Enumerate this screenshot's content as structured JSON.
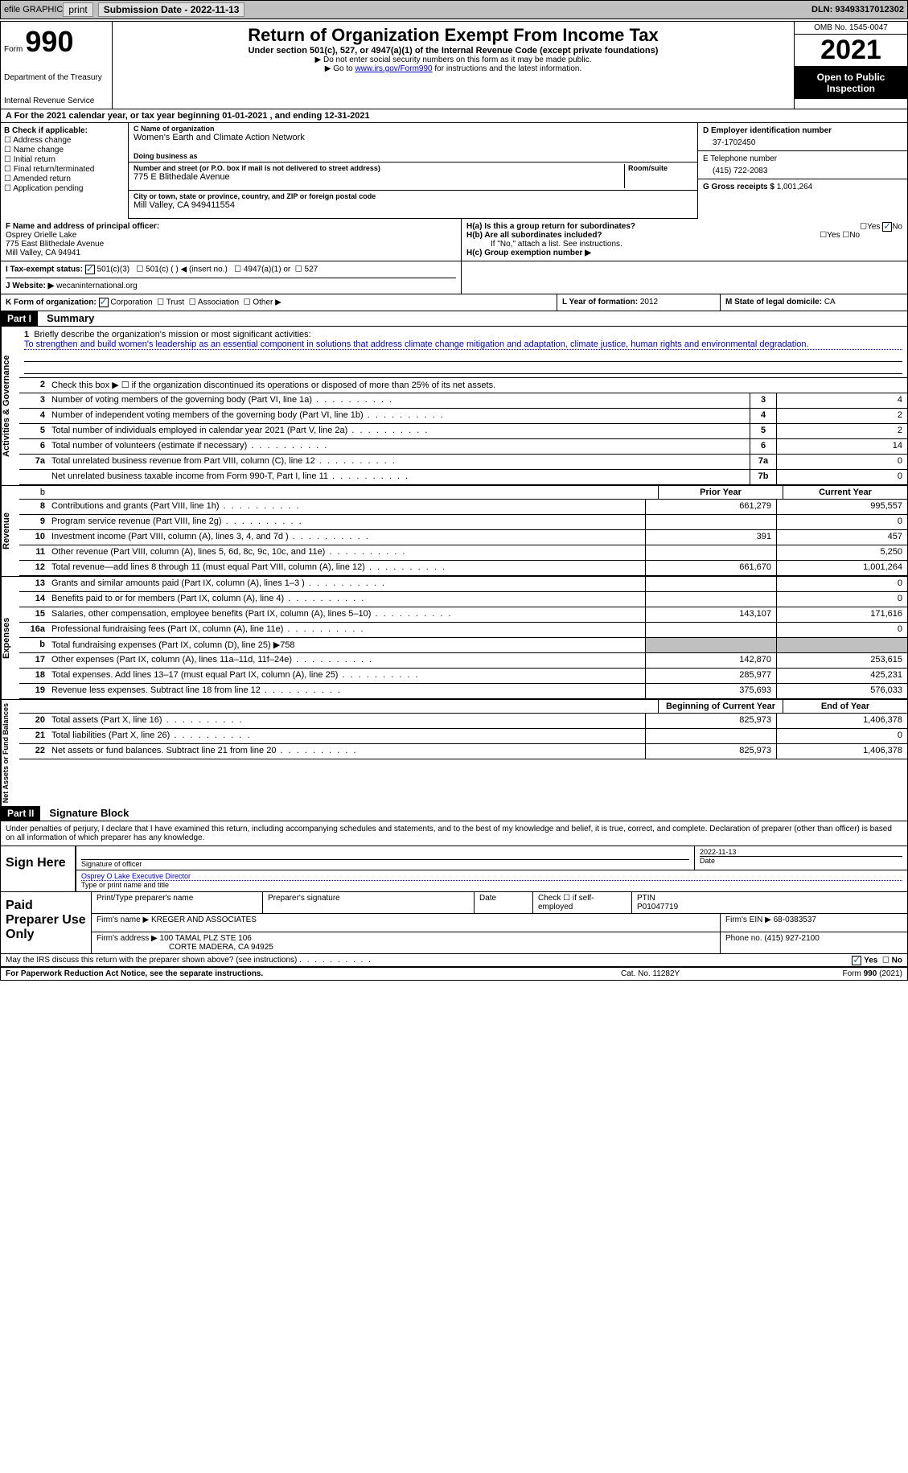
{
  "top_bar": {
    "efile_label": "efile GRAPHIC",
    "print_btn": "print",
    "submission_label": "Submission Date - 2022-11-13",
    "dln": "DLN: 93493317012302"
  },
  "header": {
    "form_word": "Form",
    "form_number": "990",
    "dept": "Department of the Treasury",
    "irs": "Internal Revenue Service",
    "title": "Return of Organization Exempt From Income Tax",
    "subtitle": "Under section 501(c), 527, or 4947(a)(1) of the Internal Revenue Code (except private foundations)",
    "note1": "▶ Do not enter social security numbers on this form as it may be made public.",
    "note2_pre": "▶ Go to ",
    "note2_link": "www.irs.gov/Form990",
    "note2_post": " for instructions and the latest information.",
    "omb": "OMB No. 1545-0047",
    "year": "2021",
    "open": "Open to Public Inspection"
  },
  "row_a": "A For the 2021 calendar year, or tax year beginning 01-01-2021    , and ending 12-31-2021",
  "box_b": {
    "title": "B Check if applicable:",
    "opts": [
      "Address change",
      "Name change",
      "Initial return",
      "Final return/terminated",
      "Amended return",
      "Application pending"
    ]
  },
  "box_c": {
    "name_label": "C Name of organization",
    "name": "Women's Earth and Climate Action Network",
    "dba_label": "Doing business as",
    "addr_label": "Number and street (or P.O. box if mail is not delivered to street address)",
    "room_label": "Room/suite",
    "addr": "775 E Blithedale Avenue",
    "city_label": "City or town, state or province, country, and ZIP or foreign postal code",
    "city": "Mill Valley, CA  949411554"
  },
  "box_d": {
    "ein_label": "D Employer identification number",
    "ein": "37-1702450",
    "phone_label": "E Telephone number",
    "phone": "(415) 722-2083",
    "gross_label": "G Gross receipts $",
    "gross": "1,001,264"
  },
  "box_f": {
    "label": "F  Name and address of principal officer:",
    "name": "Osprey Orielle Lake",
    "addr": "775 East Blithedale Avenue",
    "city": "Mill Valley, CA  94941"
  },
  "box_h": {
    "a_label": "H(a)  Is this a group return for subordinates?",
    "b_label": "H(b)  Are all subordinates included?",
    "b_note": "If \"No,\" attach a list. See instructions.",
    "c_label": "H(c)  Group exemption number ▶",
    "yes": "Yes",
    "no": "No"
  },
  "tax_status": {
    "label": "I  Tax-exempt status:",
    "opt1": "501(c)(3)",
    "opt2": "501(c) (  ) ◀ (insert no.)",
    "opt3": "4947(a)(1) or",
    "opt4": "527"
  },
  "website": {
    "label": "J  Website: ▶",
    "value": "wecaninternational.org"
  },
  "row_k": {
    "label": "K Form of organization:",
    "opts": [
      "Corporation",
      "Trust",
      "Association",
      "Other ▶"
    ],
    "l_label": "L Year of formation:",
    "l_val": "2012",
    "m_label": "M State of legal domicile:",
    "m_val": "CA"
  },
  "part1": {
    "header": "Part I",
    "title": "Summary",
    "vlabel_gov": "Activities & Governance",
    "vlabel_rev": "Revenue",
    "vlabel_exp": "Expenses",
    "vlabel_net": "Net Assets or Fund Balances",
    "line1_label": "Briefly describe the organization's mission or most significant activities:",
    "line1_text": "To strengthen and build women's leadership as an essential component in solutions that address climate change mitigation and adaptation, climate justice, human rights and environmental degradation.",
    "line2": "Check this box ▶ ☐  if the organization discontinued its operations or disposed of more than 25% of its net assets.",
    "prior_hdr": "Prior Year",
    "current_hdr": "Current Year",
    "begin_hdr": "Beginning of Current Year",
    "end_hdr": "End of Year",
    "lines_single": [
      {
        "n": "3",
        "d": "Number of voting members of the governing body (Part VI, line 1a)",
        "box": "3",
        "v": "4"
      },
      {
        "n": "4",
        "d": "Number of independent voting members of the governing body (Part VI, line 1b)",
        "box": "4",
        "v": "2"
      },
      {
        "n": "5",
        "d": "Total number of individuals employed in calendar year 2021 (Part V, line 2a)",
        "box": "5",
        "v": "2"
      },
      {
        "n": "6",
        "d": "Total number of volunteers (estimate if necessary)",
        "box": "6",
        "v": "14"
      },
      {
        "n": "7a",
        "d": "Total unrelated business revenue from Part VIII, column (C), line 12",
        "box": "7a",
        "v": "0"
      },
      {
        "n": "",
        "d": "Net unrelated business taxable income from Form 990-T, Part I, line 11",
        "box": "7b",
        "v": "0"
      }
    ],
    "lines_rev": [
      {
        "n": "8",
        "d": "Contributions and grants (Part VIII, line 1h)",
        "p": "661,279",
        "c": "995,557"
      },
      {
        "n": "9",
        "d": "Program service revenue (Part VIII, line 2g)",
        "p": "",
        "c": "0"
      },
      {
        "n": "10",
        "d": "Investment income (Part VIII, column (A), lines 3, 4, and 7d )",
        "p": "391",
        "c": "457"
      },
      {
        "n": "11",
        "d": "Other revenue (Part VIII, column (A), lines 5, 6d, 8c, 9c, 10c, and 11e)",
        "p": "",
        "c": "5,250"
      },
      {
        "n": "12",
        "d": "Total revenue—add lines 8 through 11 (must equal Part VIII, column (A), line 12)",
        "p": "661,670",
        "c": "1,001,264"
      }
    ],
    "lines_exp": [
      {
        "n": "13",
        "d": "Grants and similar amounts paid (Part IX, column (A), lines 1–3 )",
        "p": "",
        "c": "0"
      },
      {
        "n": "14",
        "d": "Benefits paid to or for members (Part IX, column (A), line 4)",
        "p": "",
        "c": "0"
      },
      {
        "n": "15",
        "d": "Salaries, other compensation, employee benefits (Part IX, column (A), lines 5–10)",
        "p": "143,107",
        "c": "171,616"
      },
      {
        "n": "16a",
        "d": "Professional fundraising fees (Part IX, column (A), line 11e)",
        "p": "",
        "c": "0"
      },
      {
        "n": "b",
        "d": "Total fundraising expenses (Part IX, column (D), line 25) ▶758",
        "p": "shade",
        "c": "shade"
      },
      {
        "n": "17",
        "d": "Other expenses (Part IX, column (A), lines 11a–11d, 11f–24e)",
        "p": "142,870",
        "c": "253,615"
      },
      {
        "n": "18",
        "d": "Total expenses. Add lines 13–17 (must equal Part IX, column (A), line 25)",
        "p": "285,977",
        "c": "425,231"
      },
      {
        "n": "19",
        "d": "Revenue less expenses. Subtract line 18 from line 12",
        "p": "375,693",
        "c": "576,033"
      }
    ],
    "lines_net": [
      {
        "n": "20",
        "d": "Total assets (Part X, line 16)",
        "p": "825,973",
        "c": "1,406,378"
      },
      {
        "n": "21",
        "d": "Total liabilities (Part X, line 26)",
        "p": "",
        "c": "0"
      },
      {
        "n": "22",
        "d": "Net assets or fund balances. Subtract line 21 from line 20",
        "p": "825,973",
        "c": "1,406,378"
      }
    ]
  },
  "part2": {
    "header": "Part II",
    "title": "Signature Block",
    "intro": "Under penalties of perjury, I declare that I have examined this return, including accompanying schedules and statements, and to the best of my knowledge and belief, it is true, correct, and complete. Declaration of preparer (other than officer) is based on all information of which preparer has any knowledge.",
    "sign_here": "Sign Here",
    "sig_officer": "Signature of officer",
    "sig_date": "2022-11-13",
    "date_label": "Date",
    "officer_name": "Osprey O Lake  Executive Director",
    "type_name": "Type or print name and title",
    "paid_label": "Paid Preparer Use Only",
    "print_name_label": "Print/Type preparer's name",
    "prep_sig_label": "Preparer's signature",
    "check_if": "Check ☐ if self-employed",
    "ptin_label": "PTIN",
    "ptin": "P01047719",
    "firm_name_label": "Firm's name    ▶",
    "firm_name": "KREGER AND ASSOCIATES",
    "firm_ein_label": "Firm's EIN ▶",
    "firm_ein": "68-0383537",
    "firm_addr_label": "Firm's address ▶",
    "firm_addr": "100 TAMAL PLZ STE 106",
    "firm_city": "CORTE MADERA, CA  94925",
    "phone_label": "Phone no.",
    "phone": "(415) 927-2100",
    "discuss": "May the IRS discuss this return with the preparer shown above? (see instructions)"
  },
  "footer": {
    "left": "For Paperwork Reduction Act Notice, see the separate instructions.",
    "mid": "Cat. No. 11282Y",
    "right": "Form 990 (2021)"
  }
}
